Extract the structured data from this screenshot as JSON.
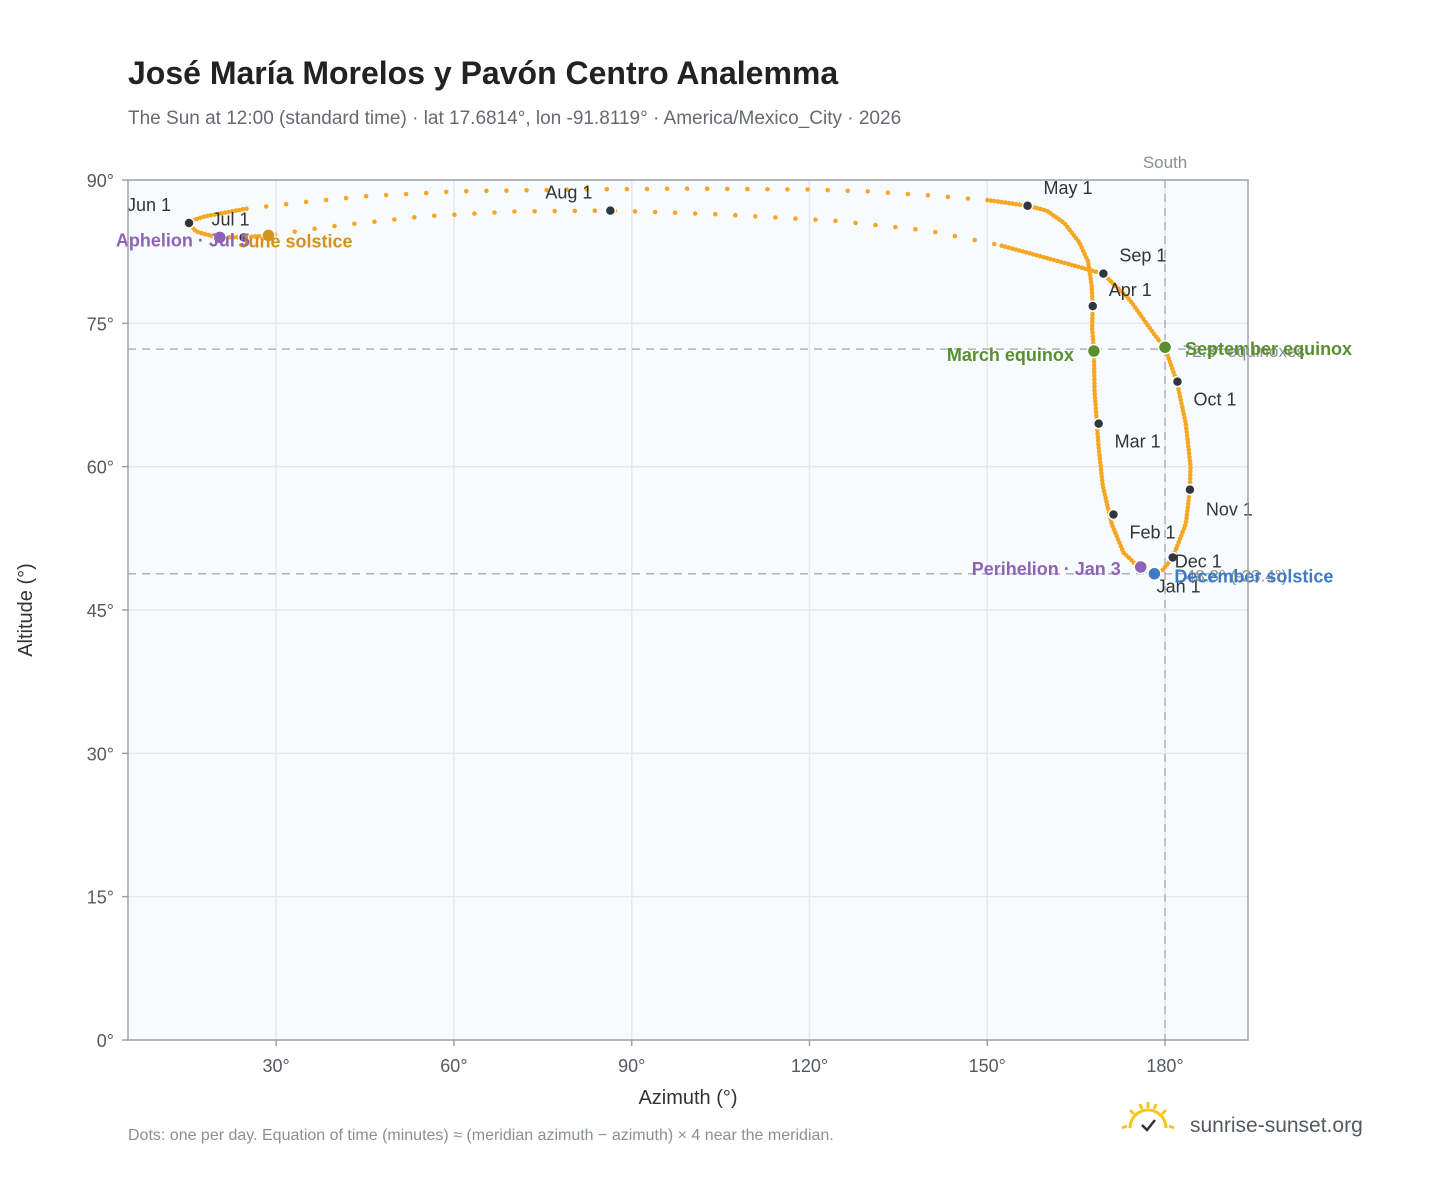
{
  "chart_data": {
    "type": "scatter",
    "title": "José María Morelos y Pavón Centro Analemma",
    "subtitle": "The Sun at 12:00 (standard time) · lat 17.6814°, lon -91.8119° · America/Mexico_City · 2026",
    "xlabel": "Azimuth (°)",
    "ylabel": "Altitude (°)",
    "xlim": [
      5,
      194
    ],
    "ylim": [
      0,
      90
    ],
    "x_ticks": [
      30,
      60,
      90,
      120,
      150,
      180
    ],
    "x_tick_labels": [
      "30°",
      "60°",
      "90°",
      "120°",
      "150°",
      "180°"
    ],
    "y_ticks": [
      0,
      15,
      30,
      45,
      60,
      75,
      90
    ],
    "y_tick_labels": [
      "0°",
      "15°",
      "30°",
      "45°",
      "60°",
      "75°",
      "90°"
    ],
    "grid": true,
    "series_color": "#f5a623",
    "path": [
      [
        177.9,
        48.8
      ],
      [
        175.5,
        49.5
      ],
      [
        173.0,
        51.0
      ],
      [
        171.0,
        54.0
      ],
      [
        169.5,
        58.0
      ],
      [
        168.8,
        62.0
      ],
      [
        168.5,
        64.5
      ],
      [
        168.1,
        68.0
      ],
      [
        168.0,
        72.1
      ],
      [
        167.7,
        74.5
      ],
      [
        167.8,
        76.9
      ],
      [
        167.6,
        79.0
      ],
      [
        167.0,
        81.5
      ],
      [
        165.5,
        83.5
      ],
      [
        163.0,
        85.5
      ],
      [
        160.0,
        86.8
      ],
      [
        156.8,
        87.3
      ],
      [
        150.0,
        87.9
      ],
      [
        140.0,
        88.4
      ],
      [
        130.0,
        88.8
      ],
      [
        120.0,
        89.0
      ],
      [
        100.0,
        89.1
      ],
      [
        80.0,
        89.0
      ],
      [
        60.0,
        88.8
      ],
      [
        45.0,
        88.3
      ],
      [
        35.0,
        87.7
      ],
      [
        25.0,
        87.0
      ],
      [
        18.0,
        86.2
      ],
      [
        15.0,
        85.6
      ],
      [
        16.5,
        84.6
      ],
      [
        20.0,
        84.0
      ],
      [
        24.5,
        84.0
      ],
      [
        28.7,
        84.2
      ],
      [
        40.0,
        85.2
      ],
      [
        55.0,
        86.2
      ],
      [
        70.0,
        86.7
      ],
      [
        86.4,
        86.8
      ],
      [
        105.0,
        86.4
      ],
      [
        125.0,
        85.7
      ],
      [
        140.0,
        84.7
      ],
      [
        152.0,
        83.2
      ],
      [
        162.0,
        81.5
      ],
      [
        169.5,
        80.2
      ],
      [
        174.0,
        77.5
      ],
      [
        178.0,
        74.0
      ],
      [
        180.0,
        72.4
      ],
      [
        182.0,
        68.9
      ],
      [
        183.5,
        64.5
      ],
      [
        184.3,
        60.0
      ],
      [
        184.2,
        57.6
      ],
      [
        183.5,
        54.0
      ],
      [
        181.3,
        50.5
      ],
      [
        179.5,
        49.1
      ],
      [
        177.9,
        48.8
      ]
    ],
    "month_points": [
      {
        "label": "Jan 1",
        "x": 177.9,
        "y": 48.9
      },
      {
        "label": "Feb 1",
        "x": 171.3,
        "y": 55.0
      },
      {
        "label": "Mar 1",
        "x": 168.8,
        "y": 64.5
      },
      {
        "label": "Apr 1",
        "x": 167.8,
        "y": 76.8
      },
      {
        "label": "May 1",
        "x": 156.8,
        "y": 87.3
      },
      {
        "label": "Jun 1",
        "x": 15.3,
        "y": 85.5
      },
      {
        "label": "Jul 1",
        "x": 24.5,
        "y": 84.0
      },
      {
        "label": "Aug 1",
        "x": 86.4,
        "y": 86.8
      },
      {
        "label": "Sep 1",
        "x": 169.6,
        "y": 80.2
      },
      {
        "label": "Oct 1",
        "x": 182.1,
        "y": 68.9
      },
      {
        "label": "Nov 1",
        "x": 184.2,
        "y": 57.6
      },
      {
        "label": "Dec 1",
        "x": 181.3,
        "y": 50.5
      }
    ],
    "events": [
      {
        "label": "June solstice",
        "x": 28.7,
        "y": 84.2,
        "color": "#d4921b"
      },
      {
        "label": "Aphelion · Jul 5",
        "x": 20.5,
        "y": 84.0,
        "color": "#8e62b5"
      },
      {
        "label": "March equinox",
        "x": 168.0,
        "y": 72.1,
        "color": "#5a8f30"
      },
      {
        "label": "September equinox",
        "x": 180.0,
        "y": 72.5,
        "color": "#5a8f30"
      },
      {
        "label": "Perihelion · Jan 3",
        "x": 175.9,
        "y": 49.5,
        "color": "#8e62b5"
      },
      {
        "label": "December solstice",
        "x": 178.2,
        "y": 48.8,
        "color": "#3f7bc2"
      }
    ],
    "reference_lines": [
      {
        "orientation": "vertical",
        "value": 180,
        "label": "South"
      },
      {
        "orientation": "horizontal",
        "value": 72.3,
        "label": "72.3° equinoxes"
      },
      {
        "orientation": "horizontal",
        "value": 48.8,
        "label": "48.8° (-23.4°)"
      }
    ],
    "footnote": "Dots: one per day. Equation of time (minutes) ≈ (meridian azimuth − azimuth) × 4 near the meridian."
  },
  "brand": {
    "name": "sunrise-sunset.org",
    "icon": "sun-check-icon",
    "color": "#f5c518"
  }
}
